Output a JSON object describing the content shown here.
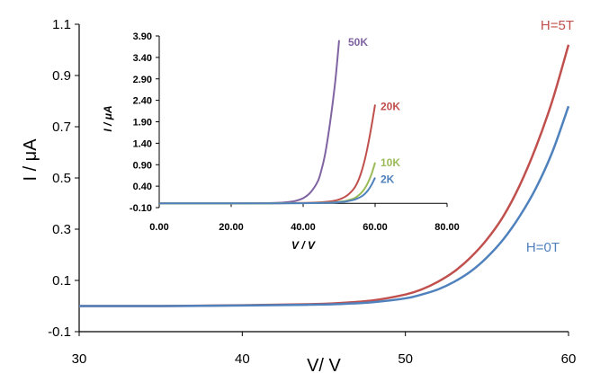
{
  "chart_data": [
    {
      "type": "line",
      "xlabel": "V/ V",
      "ylabel": "I / μA",
      "xlim": [
        30,
        60
      ],
      "ylim": [
        -0.1,
        1.1
      ],
      "x_ticks": [
        30,
        40,
        50,
        60
      ],
      "y_ticks": [
        -0.1,
        0.1,
        0.3,
        0.5,
        0.7,
        0.9,
        1.1
      ],
      "x_tick_labels": [
        "30",
        "40",
        "50",
        "60"
      ],
      "y_tick_labels": [
        "-0.1",
        "0.1",
        "0.3",
        "0.5",
        "0.7",
        "0.9",
        "1.1"
      ],
      "grid": false,
      "series": [
        {
          "name": "H=5T",
          "color": "#c0504d",
          "label_pos": "right-top",
          "x": [
            30,
            35,
            40,
            44,
            46,
            48,
            50,
            51,
            52,
            53,
            54,
            55,
            56,
            57,
            58,
            59,
            60
          ],
          "y": [
            0.0,
            0.0,
            0.003,
            0.007,
            0.012,
            0.022,
            0.045,
            0.065,
            0.095,
            0.135,
            0.19,
            0.26,
            0.35,
            0.47,
            0.62,
            0.8,
            1.02
          ]
        },
        {
          "name": "H=0T",
          "color": "#4f81bd",
          "label_pos": "right-bottom",
          "x": [
            30,
            35,
            40,
            44,
            46,
            48,
            50,
            51,
            52,
            53,
            54,
            55,
            56,
            57,
            58,
            59,
            60
          ],
          "y": [
            0.0,
            0.0,
            0.002,
            0.005,
            0.008,
            0.015,
            0.03,
            0.045,
            0.065,
            0.095,
            0.135,
            0.19,
            0.26,
            0.35,
            0.46,
            0.6,
            0.78
          ]
        }
      ]
    },
    {
      "type": "line",
      "xlabel": "V / V",
      "ylabel": "I / μA",
      "xlim": [
        0,
        80
      ],
      "ylim": [
        -0.1,
        3.9
      ],
      "x_ticks": [
        0,
        20,
        40,
        60,
        80
      ],
      "y_ticks": [
        -0.1,
        0.4,
        0.9,
        1.4,
        1.9,
        2.4,
        2.9,
        3.4,
        3.9
      ],
      "x_tick_labels": [
        "0.00",
        "20.00",
        "40.00",
        "60.00",
        "80.00"
      ],
      "y_tick_labels": [
        "-0.10",
        "0.40",
        "0.90",
        "1.40",
        "1.90",
        "2.40",
        "2.90",
        "3.40",
        "3.90"
      ],
      "grid": false,
      "series": [
        {
          "name": "50K",
          "color": "#8064a2",
          "x": [
            0,
            20,
            30,
            34,
            36,
            38,
            40,
            42,
            44,
            45,
            46,
            47,
            48,
            49,
            50
          ],
          "y": [
            0.0,
            0.0,
            0.005,
            0.015,
            0.03,
            0.06,
            0.12,
            0.25,
            0.5,
            0.75,
            1.1,
            1.6,
            2.2,
            2.9,
            3.8
          ]
        },
        {
          "name": "20K",
          "color": "#c0504d",
          "x": [
            0,
            20,
            30,
            40,
            44,
            48,
            50,
            52,
            54,
            55,
            56,
            57,
            58,
            59,
            60
          ],
          "y": [
            0.0,
            0.0,
            0.0,
            0.01,
            0.02,
            0.05,
            0.09,
            0.17,
            0.33,
            0.47,
            0.68,
            0.97,
            1.35,
            1.8,
            2.3
          ]
        },
        {
          "name": "10K",
          "color": "#9bbb59",
          "x": [
            0,
            20,
            30,
            40,
            44,
            48,
            50,
            52,
            54,
            55,
            56,
            57,
            58,
            59,
            60
          ],
          "y": [
            0.0,
            0.0,
            0.0,
            0.005,
            0.01,
            0.02,
            0.035,
            0.06,
            0.11,
            0.16,
            0.23,
            0.33,
            0.48,
            0.68,
            0.95
          ]
        },
        {
          "name": "2K",
          "color": "#4f81bd",
          "x": [
            0,
            20,
            30,
            40,
            44,
            48,
            50,
            52,
            54,
            55,
            56,
            57,
            58,
            59,
            60
          ],
          "y": [
            0.0,
            0.0,
            0.0,
            0.003,
            0.007,
            0.014,
            0.025,
            0.045,
            0.08,
            0.11,
            0.15,
            0.21,
            0.3,
            0.43,
            0.6
          ]
        }
      ]
    }
  ]
}
